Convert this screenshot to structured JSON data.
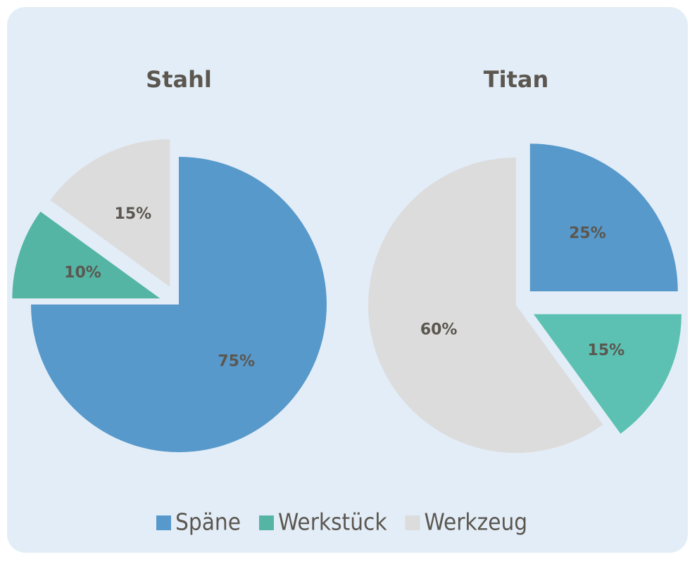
{
  "chart_data": [
    {
      "type": "pie",
      "title": "Stahl",
      "categories": [
        "Späne",
        "Werkstück",
        "Werkzeug"
      ],
      "values": [
        75,
        10,
        15
      ],
      "value_labels": [
        "75%",
        "10%",
        "15%"
      ],
      "colors": [
        "#5799cb",
        "#55b5a5",
        "#dcdcdc"
      ],
      "explode": [
        false,
        true,
        true
      ]
    },
    {
      "type": "pie",
      "title": "Titan",
      "categories": [
        "Späne",
        "Werkstück",
        "Werkzeug"
      ],
      "values": [
        25,
        15,
        60
      ],
      "value_labels": [
        "25%",
        "15%",
        "60%"
      ],
      "colors": [
        "#5799cb",
        "#5cc1b2",
        "#dcdcdc"
      ],
      "explode": [
        true,
        true,
        false
      ]
    }
  ]
}
